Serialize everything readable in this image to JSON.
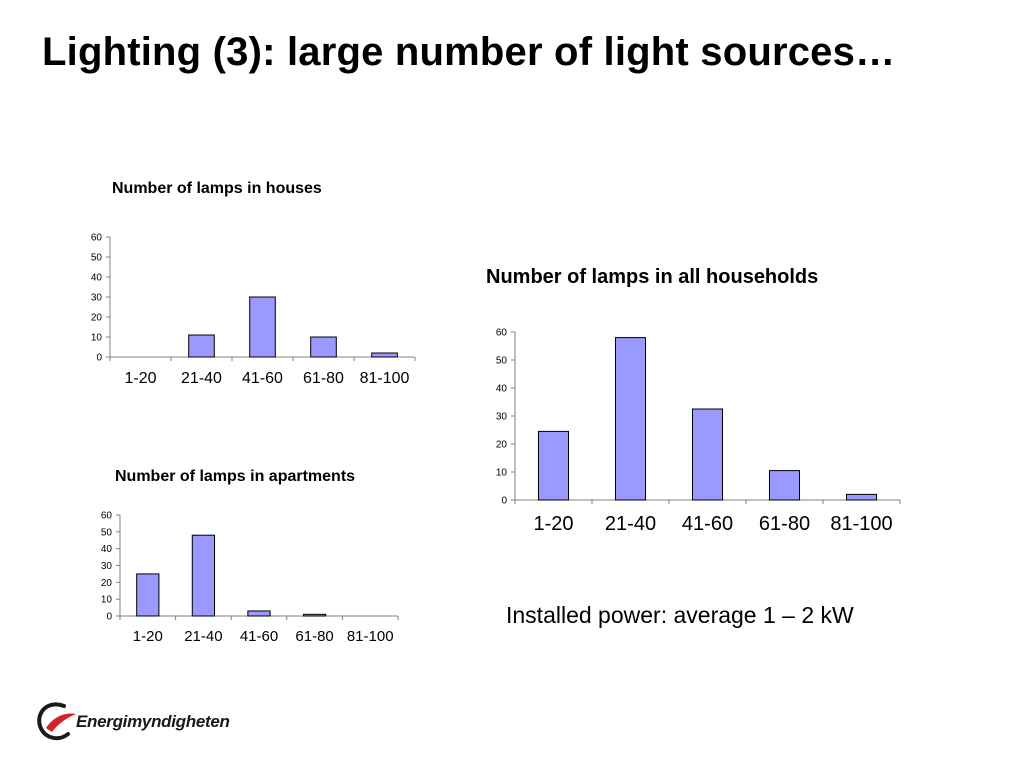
{
  "slide": {
    "title": "Lighting (3): large number of light sources…",
    "note": "Installed power: average 1 – 2 kW"
  },
  "logo": {
    "text": "Energimyndigheten",
    "colors": {
      "red": "#d2232a",
      "dark": "#1a1a1a"
    }
  },
  "colors": {
    "bar_fill": "#9999ff",
    "bar_stroke": "#000000",
    "axis": "#808080"
  },
  "chart_data": [
    {
      "id": "houses",
      "type": "bar",
      "title": "Number of lamps in houses",
      "categories": [
        "1-20",
        "21-40",
        "41-60",
        "61-80",
        "81-100"
      ],
      "values": [
        0,
        11,
        30,
        10,
        2
      ],
      "ylim": [
        0,
        60
      ],
      "yticks": [
        0,
        10,
        20,
        30,
        40,
        50,
        60
      ],
      "xlabel": "",
      "ylabel": "",
      "grid": false,
      "legend": "none"
    },
    {
      "id": "all",
      "type": "bar",
      "title": "Number of lamps in all households",
      "categories": [
        "1-20",
        "21-40",
        "41-60",
        "61-80",
        "81-100"
      ],
      "values": [
        24.5,
        58,
        32.5,
        10.5,
        2
      ],
      "ylim": [
        0,
        60
      ],
      "yticks": [
        0,
        10,
        20,
        30,
        40,
        50,
        60
      ],
      "xlabel": "",
      "ylabel": "",
      "grid": false,
      "legend": "none"
    },
    {
      "id": "apartments",
      "type": "bar",
      "title": "Number of lamps in apartments",
      "categories": [
        "1-20",
        "21-40",
        "41-60",
        "61-80",
        "81-100"
      ],
      "values": [
        25,
        48,
        3,
        1,
        0
      ],
      "ylim": [
        0,
        60
      ],
      "yticks": [
        0,
        10,
        20,
        30,
        40,
        50,
        60
      ],
      "xlabel": "",
      "ylabel": "",
      "grid": false,
      "legend": "none"
    }
  ]
}
